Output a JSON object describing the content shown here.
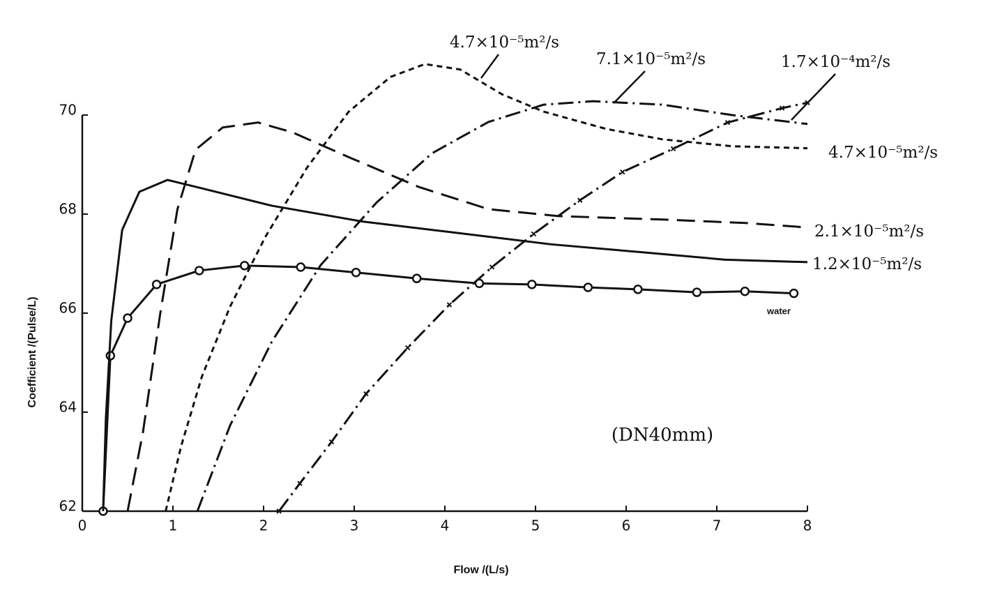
{
  "chart_data": {
    "type": "line",
    "xlabel": "Flow /(L/s)",
    "ylabel": "Coefficient /(Pulse/L)",
    "annotation": "(DN40mm)",
    "xlim": [
      0,
      8
    ],
    "xticks": [
      0,
      1,
      2,
      3,
      4,
      5,
      6,
      7,
      8
    ],
    "ylim": [
      62,
      70
    ],
    "yticks": [
      62,
      64,
      66,
      68,
      70
    ],
    "grid": false,
    "series": [
      {
        "name": "water",
        "color": "#111",
        "linestyle": "solid",
        "marker": "o",
        "x": [
          0.23,
          0.31,
          0.5,
          0.82,
          1.29,
          1.79,
          2.41,
          3.02,
          3.69,
          4.38,
          4.96,
          5.58,
          6.13,
          6.78,
          7.31,
          7.85
        ],
        "values": [
          62,
          65.14,
          65.9,
          66.58,
          66.86,
          66.96,
          66.93,
          66.82,
          66.7,
          66.6,
          66.58,
          66.52,
          66.48,
          66.42,
          66.44,
          66.4
        ]
      },
      {
        "name": "1.2×10⁻⁵m²/s",
        "color": "#111",
        "linestyle": "solid",
        "marker": "none",
        "x": [
          0.23,
          0.26,
          0.32,
          0.44,
          0.63,
          0.94,
          1.32,
          2.09,
          3.09,
          4.09,
          5.17,
          6.17,
          7.09,
          8
        ],
        "values": [
          62,
          63.87,
          65.85,
          67.68,
          68.45,
          68.69,
          68.52,
          68.17,
          67.85,
          67.63,
          67.39,
          67.23,
          67.08,
          67.03
        ]
      },
      {
        "name": "2.1×10⁻⁵m²/s",
        "color": "#111",
        "linestyle": "dashed",
        "marker": "none",
        "x": [
          0.5,
          0.67,
          0.86,
          1.05,
          1.25,
          1.55,
          1.94,
          2.32,
          2.94,
          3.71,
          4.48,
          5.25,
          6.4,
          7.32,
          8
        ],
        "values": [
          62,
          63.6,
          65.99,
          68.1,
          69.3,
          69.75,
          69.85,
          69.65,
          69.15,
          68.55,
          68.1,
          67.96,
          67.89,
          67.82,
          67.73
        ]
      },
      {
        "name": "4.7×10⁻⁵m²/s",
        "color": "#111",
        "linestyle": "dotted",
        "marker": "none",
        "x": [
          0.92,
          1.09,
          1.32,
          1.63,
          2.02,
          2.48,
          2.94,
          3.4,
          3.78,
          4.17,
          4.63,
          5.09,
          5.78,
          6.4,
          7.17,
          8
        ],
        "values": [
          62,
          63.31,
          64.72,
          66.13,
          67.54,
          68.94,
          70.07,
          70.77,
          71.03,
          70.92,
          70.42,
          70.07,
          69.72,
          69.51,
          69.37,
          69.33
        ]
      },
      {
        "name": "7.1×10⁻⁵m²/s",
        "color": "#111",
        "linestyle": "dashdot",
        "marker": "none",
        "x": [
          1.27,
          1.63,
          2.09,
          2.63,
          3.25,
          3.86,
          4.48,
          5.09,
          5.63,
          6.4,
          7.17,
          8
        ],
        "values": [
          62,
          63.73,
          65.42,
          66.97,
          68.24,
          69.23,
          69.86,
          70.21,
          70.28,
          70.21,
          70.0,
          69.82
        ]
      },
      {
        "name": "1.7×10⁻⁴m²/s",
        "color": "#111",
        "linestyle": "dashdot",
        "marker": "x",
        "x": [
          2.17,
          2.4,
          2.75,
          3.13,
          3.59,
          4.05,
          4.52,
          4.98,
          5.49,
          5.96,
          6.52,
          7.12,
          7.72,
          8
        ],
        "values": [
          62,
          62.56,
          63.4,
          64.37,
          65.3,
          66.17,
          66.93,
          67.6,
          68.28,
          68.85,
          69.32,
          69.85,
          70.14,
          70.25
        ]
      }
    ]
  }
}
